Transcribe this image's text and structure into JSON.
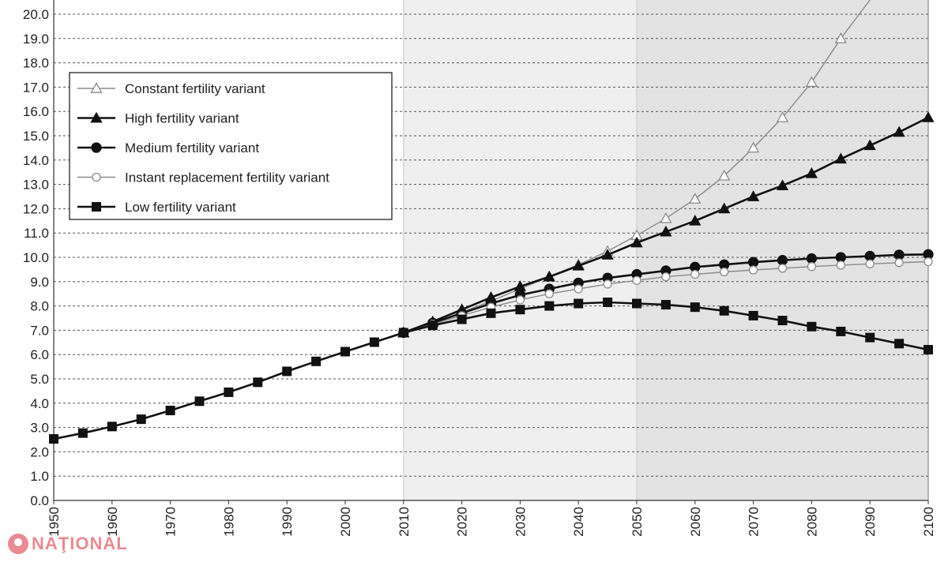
{
  "chart_data": {
    "type": "line",
    "title": "",
    "xlabel": "",
    "ylabel": "",
    "xlim": [
      1950,
      2100
    ],
    "ylim": [
      0,
      20
    ],
    "y_ticks": [
      "0.0",
      "1.0",
      "2.0",
      "3.0",
      "4.0",
      "5.0",
      "6.0",
      "7.0",
      "8.0",
      "9.0",
      "10.0",
      "11.0",
      "12.0",
      "13.0",
      "14.0",
      "15.0",
      "16.0",
      "17.0",
      "18.0",
      "19.0",
      "20.0"
    ],
    "x_ticks": [
      "1950",
      "1960",
      "1970",
      "1980",
      "1990",
      "2000",
      "2010",
      "2020",
      "2030",
      "2040",
      "2050",
      "2060",
      "2070",
      "2080",
      "2090",
      "2100"
    ],
    "grid": "horizontal dashed",
    "legend_position": "top-left",
    "shaded_regions": [
      {
        "from": 2010,
        "to": 2050,
        "color": "#efefef"
      },
      {
        "from": 2050,
        "to": 2100,
        "color": "#e3e3e3"
      }
    ],
    "series": [
      {
        "name": "Constant fertility variant",
        "marker": "triangle-open",
        "color": "#8a8a8a",
        "x": [
          2010,
          2015,
          2020,
          2025,
          2030,
          2035,
          2040,
          2045,
          2050,
          2055,
          2060,
          2065,
          2070,
          2075,
          2080,
          2085,
          2090
        ],
        "values": [
          6.9,
          7.3,
          7.75,
          8.2,
          8.7,
          9.2,
          9.7,
          10.25,
          10.9,
          11.6,
          12.4,
          13.35,
          14.5,
          15.75,
          17.2,
          19.0,
          21.0
        ]
      },
      {
        "name": "High fertility variant",
        "marker": "triangle-filled",
        "color": "#111111",
        "x": [
          2010,
          2015,
          2020,
          2025,
          2030,
          2035,
          2040,
          2045,
          2050,
          2055,
          2060,
          2065,
          2070,
          2075,
          2080,
          2085,
          2090,
          2095,
          2100
        ],
        "values": [
          6.9,
          7.35,
          7.85,
          8.35,
          8.8,
          9.2,
          9.65,
          10.1,
          10.6,
          11.05,
          11.5,
          12.0,
          12.5,
          12.95,
          13.45,
          14.05,
          14.6,
          15.15,
          15.75
        ]
      },
      {
        "name": "Medium fertility variant",
        "marker": "circle-filled",
        "color": "#111111",
        "x": [
          2010,
          2015,
          2020,
          2025,
          2030,
          2035,
          2040,
          2045,
          2050,
          2055,
          2060,
          2065,
          2070,
          2075,
          2080,
          2085,
          2090,
          2095,
          2100
        ],
        "values": [
          6.9,
          7.3,
          7.7,
          8.1,
          8.45,
          8.7,
          8.95,
          9.15,
          9.3,
          9.45,
          9.6,
          9.7,
          9.8,
          9.88,
          9.95,
          10.0,
          10.05,
          10.1,
          10.12
        ]
      },
      {
        "name": "Instant replacement fertility variant",
        "marker": "circle-open",
        "color": "#8a8a8a",
        "x": [
          2010,
          2015,
          2020,
          2025,
          2030,
          2035,
          2040,
          2045,
          2050,
          2055,
          2060,
          2065,
          2070,
          2075,
          2080,
          2085,
          2090,
          2095,
          2100
        ],
        "values": [
          6.9,
          7.25,
          7.6,
          7.95,
          8.25,
          8.5,
          8.7,
          8.9,
          9.05,
          9.2,
          9.3,
          9.4,
          9.48,
          9.55,
          9.62,
          9.68,
          9.73,
          9.78,
          9.82
        ]
      },
      {
        "name": "Low fertility variant",
        "marker": "square-filled",
        "color": "#111111",
        "x": [
          1950,
          1955,
          1960,
          1965,
          1970,
          1975,
          1980,
          1985,
          1990,
          1995,
          2000,
          2005,
          2010,
          2015,
          2020,
          2025,
          2030,
          2035,
          2040,
          2045,
          2050,
          2055,
          2060,
          2065,
          2070,
          2075,
          2080,
          2085,
          2090,
          2095,
          2100
        ],
        "values": [
          2.53,
          2.77,
          3.04,
          3.34,
          3.7,
          4.08,
          4.45,
          4.86,
          5.31,
          5.72,
          6.12,
          6.51,
          6.9,
          7.2,
          7.45,
          7.7,
          7.85,
          8.0,
          8.1,
          8.15,
          8.1,
          8.05,
          7.95,
          7.8,
          7.6,
          7.4,
          7.15,
          6.95,
          6.7,
          6.45,
          6.2
        ]
      }
    ]
  },
  "watermark": {
    "text": "NAŢIONAL"
  }
}
